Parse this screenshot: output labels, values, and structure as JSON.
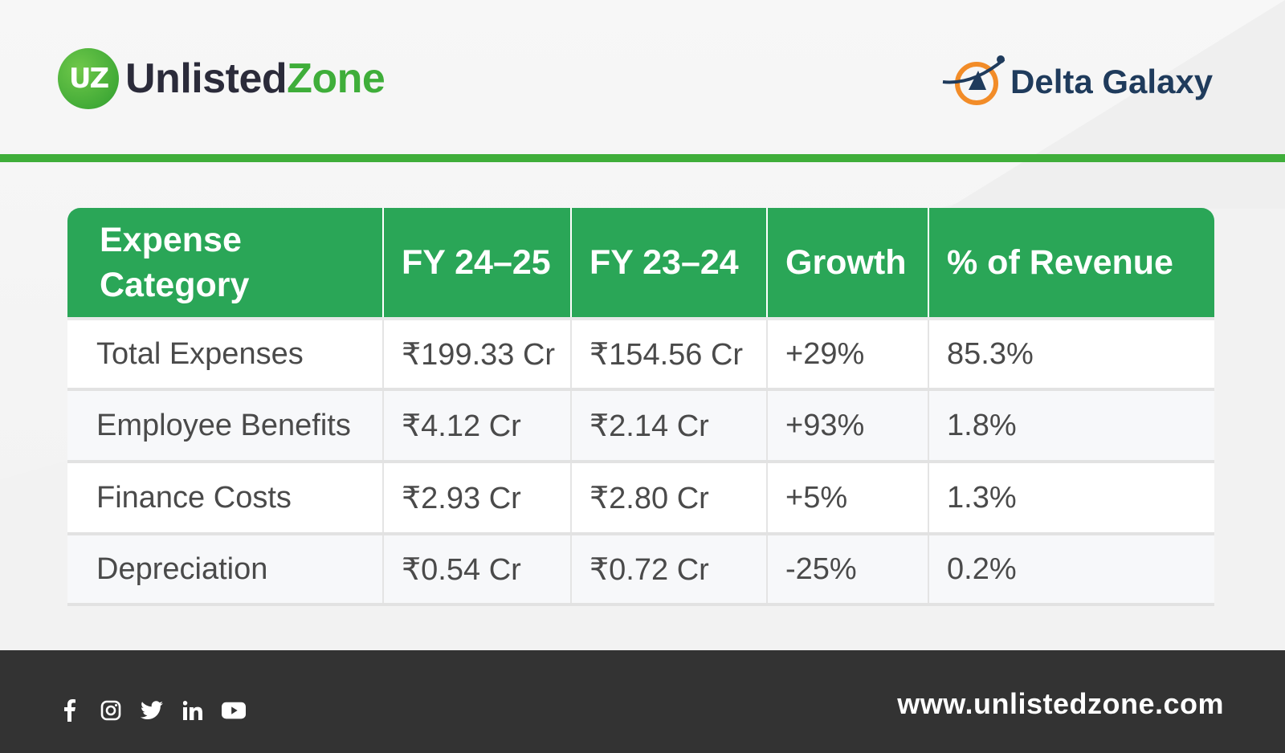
{
  "brand": {
    "left_logo_mark": "UZ",
    "left_logo_dark": "Unlisted",
    "left_logo_green": "Zone",
    "right_logo_text": "Delta Galaxy"
  },
  "colors": {
    "accent_green": "#3fae3a",
    "header_green": "#2aa657",
    "footer_bg": "#333333",
    "delta_navy": "#1f3b5c",
    "delta_orange": "#f28c28"
  },
  "table": {
    "headers": [
      "Expense Category",
      "FY 24–25",
      "FY 23–24",
      "Growth",
      "% of Revenue"
    ],
    "header_category_line1": "Expense",
    "header_category_line2": "Category",
    "rows": [
      [
        "Total Expenses",
        "₹199.33 Cr",
        "₹154.56 Cr",
        "+29%",
        "85.3%"
      ],
      [
        "Employee Benefits",
        "₹4.12 Cr",
        "₹2.14 Cr",
        "+93%",
        "1.8%"
      ],
      [
        "Finance Costs",
        "₹2.93 Cr",
        "₹2.80 Cr",
        "+5%",
        "1.3%"
      ],
      [
        "Depreciation",
        "₹0.54 Cr",
        "₹0.72 Cr",
        "-25%",
        "0.2%"
      ]
    ]
  },
  "footer": {
    "social_icons": [
      "facebook-icon",
      "instagram-icon",
      "twitter-icon",
      "linkedin-icon",
      "youtube-icon"
    ],
    "website": "www.unlistedzone.com"
  }
}
